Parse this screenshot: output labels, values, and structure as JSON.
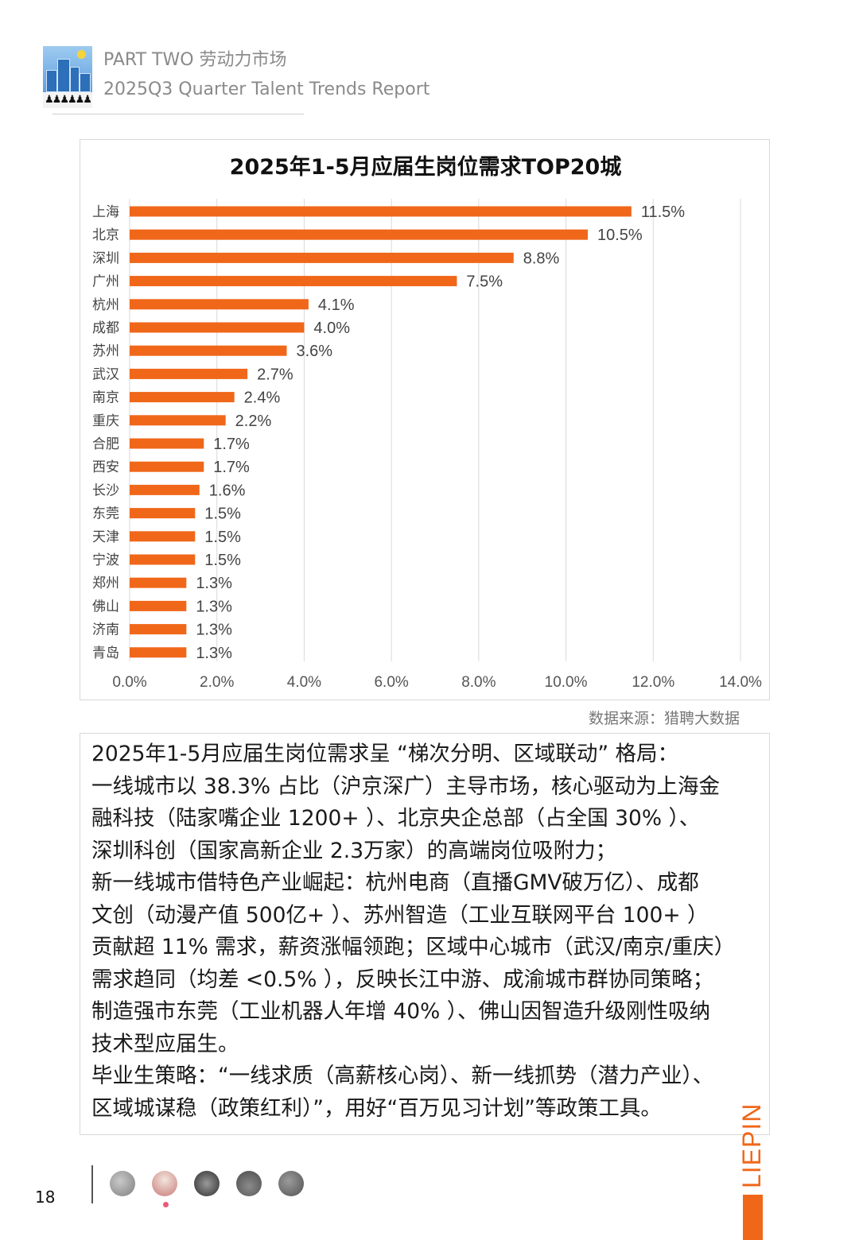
{
  "header": {
    "section": "PART TWO 劳动力市场",
    "report": "2025Q3 Quarter Talent Trends Report"
  },
  "chart_data": {
    "type": "bar",
    "orientation": "horizontal",
    "title": "2025年1-5月应届生岗位需求TOP20城",
    "categories": [
      "上海",
      "北京",
      "深圳",
      "广州",
      "杭州",
      "成都",
      "苏州",
      "武汉",
      "南京",
      "重庆",
      "合肥",
      "西安",
      "长沙",
      "东莞",
      "天津",
      "宁波",
      "郑州",
      "佛山",
      "济南",
      "青岛"
    ],
    "values": [
      11.5,
      10.5,
      8.8,
      7.5,
      4.1,
      4.0,
      3.6,
      2.7,
      2.4,
      2.2,
      1.7,
      1.7,
      1.6,
      1.5,
      1.5,
      1.5,
      1.3,
      1.3,
      1.3,
      1.3
    ],
    "data_labels": [
      "11.5%",
      "10.5%",
      "8.8%",
      "7.5%",
      "4.1%",
      "4.0%",
      "3.6%",
      "2.7%",
      "2.4%",
      "2.2%",
      "1.7%",
      "1.7%",
      "1.6%",
      "1.5%",
      "1.5%",
      "1.5%",
      "1.3%",
      "1.3%",
      "1.3%",
      "1.3%"
    ],
    "xlim": [
      0,
      14
    ],
    "x_ticks": [
      0,
      2,
      4,
      6,
      8,
      10,
      12,
      14
    ],
    "x_tick_labels": [
      "0.0%",
      "2.0%",
      "4.0%",
      "6.0%",
      "8.0%",
      "10.0%",
      "12.0%",
      "14.0%"
    ],
    "bar_color": "#f0671a",
    "grid": "vertical"
  },
  "source": "数据来源：猎聘大数据",
  "body_lines": [
    "2025年1-5月应届生岗位需求呈 “梯次分明、区域联动” 格局：",
    "一线城市以 38.3% 占比（沪京深广）主导市场，核心驱动为上海金",
    "融科技（陆家嘴企业 1200+ ）、北京央企总部（占全国 30% ）、",
    "深圳科创（国家高新企业 2.3万家）的高端岗位吸附力；",
    "新一线城市借特色产业崛起：杭州电商（直播GMV破万亿）、成都",
    "文创（动漫产值 500亿+ ）、苏州智造（工业互联网平台 100+ ）",
    "贡献超 11% 需求，薪资涨幅领跑；区域中心城市（武汉/南京/重庆）",
    "需求趋同（均差 <0.5% ），反映长江中游、成渝城市群协同策略；",
    "制造强市东莞（工业机器人年增 40% ）、佛山因智造升级刚性吸纳",
    "技术型应届生。",
    "毕业生策略：“一线求质（高薪核心岗）、新一线抓势（潜力产业）、",
    "区域城谋稳（政策红利）”，用好“百万见习计划”等政策工具。"
  ],
  "footer": {
    "page_number": "18",
    "brand": "LIEPIN",
    "brand_color": "#f0671a"
  }
}
